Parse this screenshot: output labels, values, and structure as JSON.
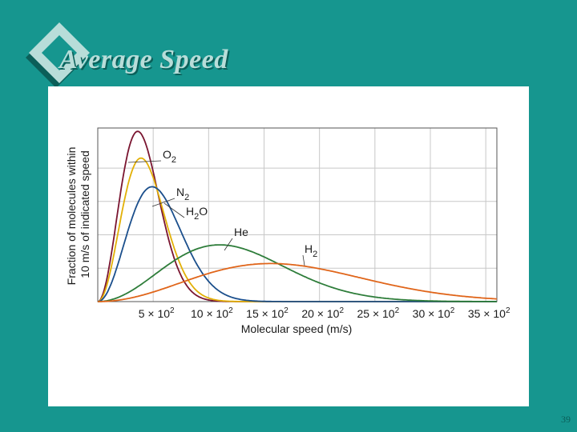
{
  "slide": {
    "title": "Average Speed",
    "page_number": "39"
  },
  "chart_data": {
    "type": "line",
    "xlabel": "Molecular speed (m/s)",
    "ylabel": [
      "Fraction of molecules within",
      "10 m/s of indicated speed"
    ],
    "xlim": [
      0,
      3600
    ],
    "ylim": [
      0,
      2.6
    ],
    "x_ticks": [
      {
        "value": 500,
        "label": "5 × 10",
        "exp": "2"
      },
      {
        "value": 1000,
        "label": "10 × 10",
        "exp": "2"
      },
      {
        "value": 1500,
        "label": "15 × 10",
        "exp": "2"
      },
      {
        "value": 2000,
        "label": "20 × 10",
        "exp": "2"
      },
      {
        "value": 2500,
        "label": "25 × 10",
        "exp": "2"
      },
      {
        "value": 3000,
        "label": "30 × 10",
        "exp": "2"
      },
      {
        "value": 3500,
        "label": "35 × 10",
        "exp": "2"
      }
    ],
    "grid": true,
    "series": [
      {
        "name": "O2",
        "label": "O",
        "sub": "2",
        "color": "#7a1530",
        "peak_x": 360,
        "peak_y": 2.55
      },
      {
        "name": "N2",
        "label": "N",
        "sub": "2",
        "color": "#e2b007",
        "peak_x": 390,
        "peak_y": 2.15
      },
      {
        "name": "H2O",
        "label": "H",
        "sub": "2",
        "label_tail": "O",
        "color": "#1b4f8c",
        "peak_x": 490,
        "peak_y": 1.72
      },
      {
        "name": "He",
        "label": "He",
        "sub": "",
        "color": "#2e7d3a",
        "peak_x": 1100,
        "peak_y": 0.85
      },
      {
        "name": "H2",
        "label": "H",
        "sub": "2",
        "color": "#e0651a",
        "peak_x": 1560,
        "peak_y": 0.57
      }
    ]
  }
}
